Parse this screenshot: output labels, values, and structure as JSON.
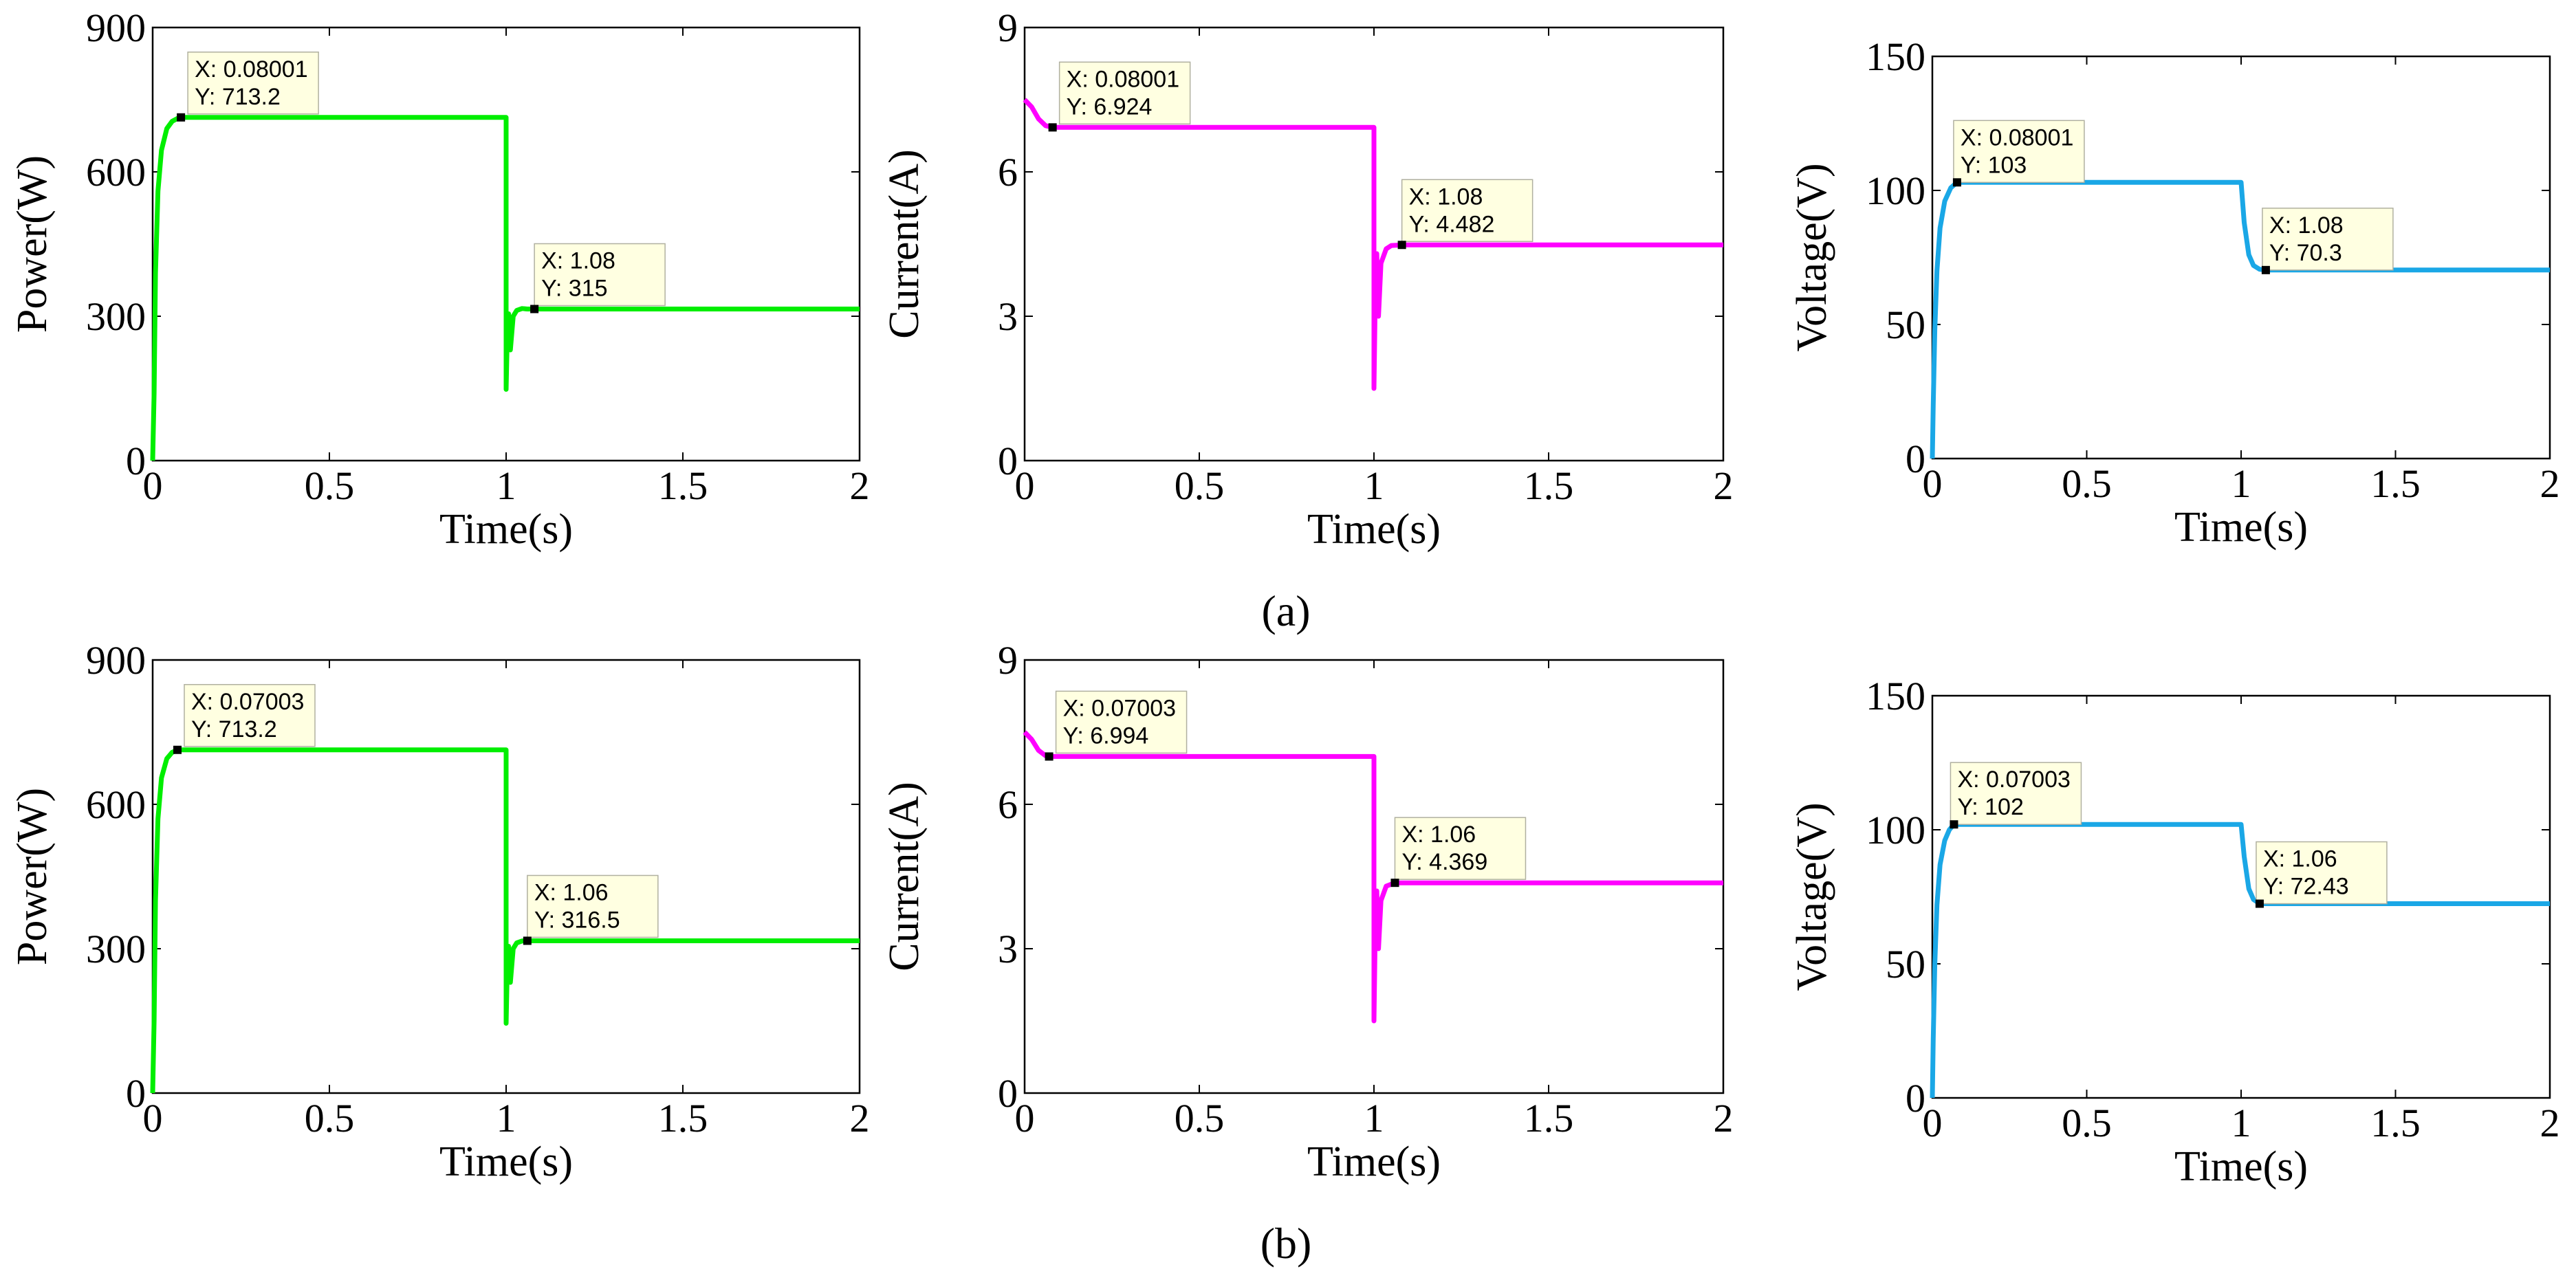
{
  "captions": {
    "a": "(a)",
    "b": "(b)"
  },
  "chart_data": [
    {
      "type": "line",
      "title": "",
      "xlabel": "Time(s)",
      "ylabel": "Power(W)",
      "xlim": [
        0,
        2
      ],
      "ylim": [
        0,
        900
      ],
      "xticks": [
        0,
        0.5,
        1,
        1.5,
        2
      ],
      "xtick_labels": [
        "0",
        "0.5",
        "1",
        "1.5",
        "2"
      ],
      "yticks": [
        0,
        300,
        600,
        900
      ],
      "ytick_labels": [
        "0",
        "300",
        "600",
        "900"
      ],
      "color": "#00ee00",
      "series": [
        {
          "name": "Power",
          "x": [
            0,
            0.004,
            0.008,
            0.015,
            0.025,
            0.04,
            0.055,
            0.07,
            0.08,
            1.0,
            1.0,
            1.003,
            1.007,
            1.012,
            1.02,
            1.03,
            1.045,
            1.06,
            1.08,
            2.0
          ],
          "y": [
            0,
            140,
            390,
            560,
            645,
            690,
            705,
            711,
            713.2,
            713.2,
            148,
            250,
            305,
            230,
            300,
            312,
            316,
            315,
            315,
            315
          ]
        }
      ],
      "datatips": [
        {
          "x": 0.08001,
          "y": 713.2,
          "lines": [
            "X: 0.08001",
            "Y: 713.2"
          ]
        },
        {
          "x": 1.08,
          "y": 315,
          "lines": [
            "X: 1.08",
            "Y: 315"
          ]
        }
      ]
    },
    {
      "type": "line",
      "title": "",
      "xlabel": "Time(s)",
      "ylabel": "Current(A)",
      "xlim": [
        0,
        2
      ],
      "ylim": [
        0,
        9
      ],
      "xticks": [
        0,
        0.5,
        1,
        1.5,
        2
      ],
      "xtick_labels": [
        "0",
        "0.5",
        "1",
        "1.5",
        "2"
      ],
      "yticks": [
        0,
        3,
        6,
        9
      ],
      "ytick_labels": [
        "0",
        "3",
        "6",
        "9"
      ],
      "color": "#ff00ff",
      "series": [
        {
          "name": "Current",
          "x": [
            0,
            0.02,
            0.04,
            0.06,
            0.08,
            1.0,
            1.0,
            1.004,
            1.008,
            1.013,
            1.02,
            1.035,
            1.05,
            1.08,
            2.0
          ],
          "y": [
            7.5,
            7.35,
            7.1,
            6.96,
            6.924,
            6.924,
            1.5,
            3.5,
            4.3,
            3.0,
            4.1,
            4.4,
            4.47,
            4.482,
            4.482
          ]
        }
      ],
      "datatips": [
        {
          "x": 0.08001,
          "y": 6.924,
          "lines": [
            "X: 0.08001",
            "Y: 6.924"
          ]
        },
        {
          "x": 1.08,
          "y": 4.482,
          "lines": [
            "X: 1.08",
            "Y: 4.482"
          ]
        }
      ]
    },
    {
      "type": "line",
      "title": "",
      "xlabel": "Time(s)",
      "ylabel": "Voltage(V)",
      "xlim": [
        0,
        2
      ],
      "ylim": [
        0,
        150
      ],
      "xticks": [
        0,
        0.5,
        1,
        1.5,
        2
      ],
      "xtick_labels": [
        "0",
        "0.5",
        "1",
        "1.5",
        "2"
      ],
      "yticks": [
        0,
        50,
        100,
        150
      ],
      "ytick_labels": [
        "0",
        "50",
        "100",
        "150"
      ],
      "color": "#1aa7e6",
      "series": [
        {
          "name": "Voltage",
          "x": [
            0,
            0.003,
            0.008,
            0.015,
            0.025,
            0.04,
            0.06,
            0.08,
            1.0,
            1.01,
            1.025,
            1.04,
            1.06,
            1.08,
            2.0
          ],
          "y": [
            0,
            20,
            48,
            70,
            86,
            96,
            101,
            103,
            103,
            88,
            76,
            72,
            70.6,
            70.3,
            70.3
          ]
        }
      ],
      "datatips": [
        {
          "x": 0.08001,
          "y": 103,
          "lines": [
            "X: 0.08001",
            "Y: 103"
          ]
        },
        {
          "x": 1.08,
          "y": 70.3,
          "lines": [
            "X: 1.08",
            "Y: 70.3"
          ]
        }
      ]
    },
    {
      "type": "line",
      "title": "",
      "xlabel": "Time(s)",
      "ylabel": "Power(W)",
      "xlim": [
        0,
        2
      ],
      "ylim": [
        0,
        900
      ],
      "xticks": [
        0,
        0.5,
        1,
        1.5,
        2
      ],
      "xtick_labels": [
        "0",
        "0.5",
        "1",
        "1.5",
        "2"
      ],
      "yticks": [
        0,
        300,
        600,
        900
      ],
      "ytick_labels": [
        "0",
        "300",
        "600",
        "900"
      ],
      "color": "#00ee00",
      "series": [
        {
          "name": "Power",
          "x": [
            0,
            0.004,
            0.008,
            0.015,
            0.025,
            0.04,
            0.055,
            0.07003,
            1.0,
            1.0,
            1.003,
            1.007,
            1.012,
            1.02,
            1.03,
            1.045,
            1.06,
            2.0
          ],
          "y": [
            0,
            150,
            400,
            570,
            655,
            695,
            708,
            713.2,
            713.2,
            145,
            250,
            305,
            230,
            300,
            312,
            316,
            316.5,
            316.5
          ]
        }
      ],
      "datatips": [
        {
          "x": 0.07003,
          "y": 713.2,
          "lines": [
            "X: 0.07003",
            "Y: 713.2"
          ]
        },
        {
          "x": 1.06,
          "y": 316.5,
          "lines": [
            "X: 1.06",
            "Y: 316.5"
          ]
        }
      ]
    },
    {
      "type": "line",
      "title": "",
      "xlabel": "Time(s)",
      "ylabel": "Current(A)",
      "xlim": [
        0,
        2
      ],
      "ylim": [
        0,
        9
      ],
      "xticks": [
        0,
        0.5,
        1,
        1.5,
        2
      ],
      "xtick_labels": [
        "0",
        "0.5",
        "1",
        "1.5",
        "2"
      ],
      "yticks": [
        0,
        3,
        6,
        9
      ],
      "ytick_labels": [
        "0",
        "3",
        "6",
        "9"
      ],
      "color": "#ff00ff",
      "series": [
        {
          "name": "Current",
          "x": [
            0,
            0.02,
            0.04,
            0.06,
            0.07003,
            1.0,
            1.0,
            1.004,
            1.008,
            1.013,
            1.02,
            1.035,
            1.06,
            2.0
          ],
          "y": [
            7.5,
            7.35,
            7.12,
            7.01,
            6.994,
            6.994,
            1.5,
            3.5,
            4.2,
            3.0,
            4.0,
            4.3,
            4.369,
            4.369
          ]
        }
      ],
      "datatips": [
        {
          "x": 0.07003,
          "y": 6.994,
          "lines": [
            "X: 0.07003",
            "Y: 6.994"
          ]
        },
        {
          "x": 1.06,
          "y": 4.369,
          "lines": [
            "X: 1.06",
            "Y: 4.369"
          ]
        }
      ]
    },
    {
      "type": "line",
      "title": "",
      "xlabel": "Time(s)",
      "ylabel": "Voltage(V)",
      "xlim": [
        0,
        2
      ],
      "ylim": [
        0,
        150
      ],
      "xticks": [
        0,
        0.5,
        1,
        1.5,
        2
      ],
      "xtick_labels": [
        "0",
        "0.5",
        "1",
        "1.5",
        "2"
      ],
      "yticks": [
        0,
        50,
        100,
        150
      ],
      "ytick_labels": [
        "0",
        "50",
        "100",
        "150"
      ],
      "color": "#1aa7e6",
      "series": [
        {
          "name": "Voltage",
          "x": [
            0,
            0.003,
            0.008,
            0.015,
            0.025,
            0.04,
            0.055,
            0.07003,
            1.0,
            1.01,
            1.025,
            1.04,
            1.06,
            2.0
          ],
          "y": [
            0,
            22,
            50,
            72,
            87,
            96,
            100,
            102,
            102,
            90,
            78,
            74,
            72.43,
            72.43
          ]
        }
      ],
      "datatips": [
        {
          "x": 0.07003,
          "y": 102,
          "lines": [
            "X: 0.07003",
            "Y: 102"
          ]
        },
        {
          "x": 1.06,
          "y": 72.43,
          "lines": [
            "X: 1.06",
            "Y: 72.43"
          ]
        }
      ]
    }
  ]
}
